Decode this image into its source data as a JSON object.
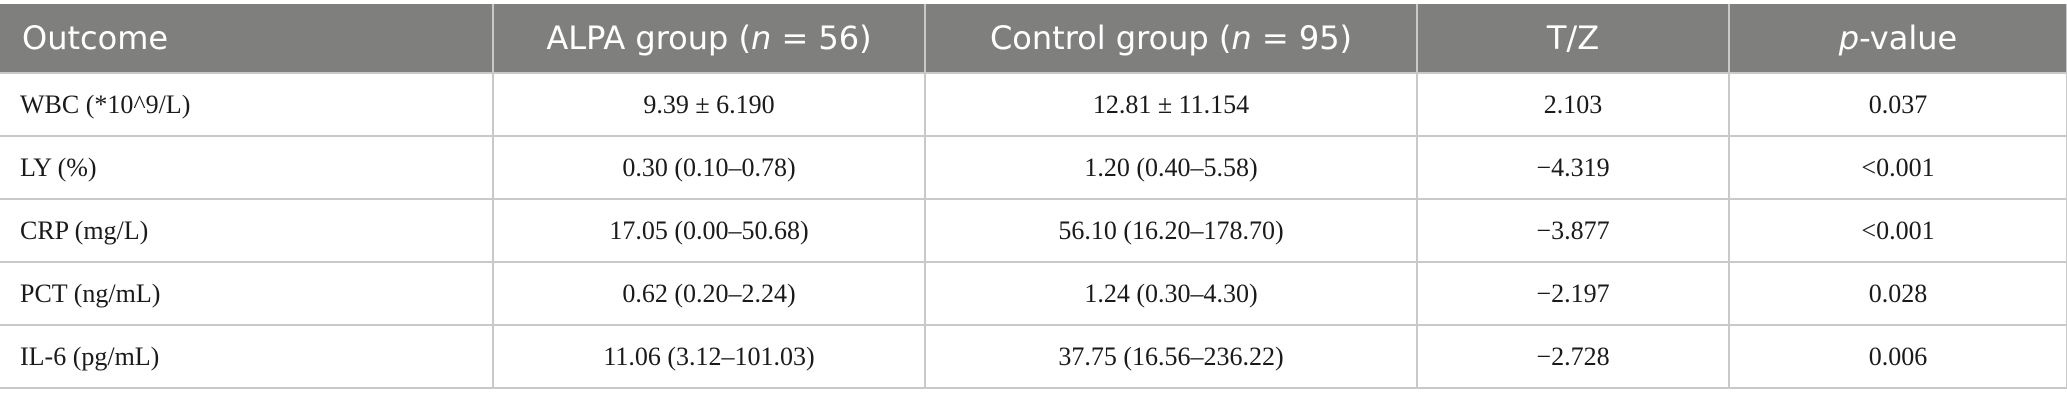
{
  "table": {
    "headers": [
      {
        "pre": "Outcome",
        "ital": "",
        "post": ""
      },
      {
        "pre": "ALPA group (",
        "ital": "n",
        "post": " = 56)"
      },
      {
        "pre": "Control group (",
        "ital": "n",
        "post": " = 95)"
      },
      {
        "pre": "T/Z",
        "ital": "",
        "post": ""
      },
      {
        "pre": "",
        "ital": "p",
        "post": "-value"
      }
    ],
    "rows": [
      [
        "WBC (*10^9/L)",
        "9.39 ± 6.190",
        "12.81 ± 11.154",
        "2.103",
        "0.037"
      ],
      [
        "LY (%)",
        "0.30 (0.10–0.78)",
        "1.20 (0.40–5.58)",
        "−4.319",
        "<0.001"
      ],
      [
        "CRP (mg/L)",
        "17.05 (0.00–50.68)",
        "56.10 (16.20–178.70)",
        "−3.877",
        "<0.001"
      ],
      [
        "PCT (ng/mL)",
        "0.62 (0.20–2.24)",
        "1.24 (0.30–4.30)",
        "−2.197",
        "0.028"
      ],
      [
        "IL-6 (pg/mL)",
        "11.06 (3.12–101.03)",
        "37.75 (16.56–236.22)",
        "−2.728",
        "0.006"
      ]
    ]
  },
  "colors": {
    "header_bg": "#7f7f7e",
    "header_text": "#ffffff",
    "grid_line": "#c9c9c9"
  }
}
